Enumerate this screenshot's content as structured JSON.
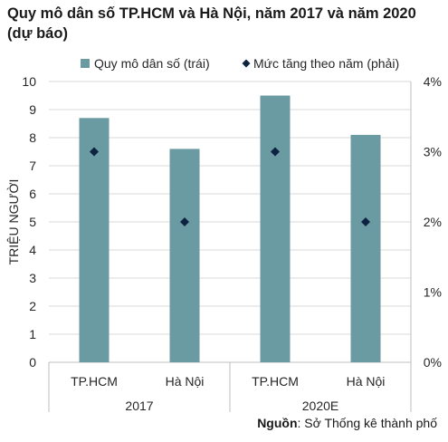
{
  "title": "Quy mô dân số TP.HCM và Hà Nội, năm 2017 và năm 2020 (dự báo)",
  "source": {
    "label": "Nguồn",
    "text": ": Sở Thống kê thành phố"
  },
  "colors": {
    "bar": "#6a9aa2",
    "marker": "#0d2340",
    "grid": "#d9d9d9",
    "axis": "#bfbfbf",
    "text": "#262626"
  },
  "chart_data": {
    "type": "bar",
    "categories": [
      "TP.HCM",
      "Hà Nội",
      "TP.HCM",
      "Hà Nội"
    ],
    "groups": [
      {
        "label": "2017",
        "span": [
          0,
          1
        ]
      },
      {
        "label": "2020E",
        "span": [
          2,
          3
        ]
      }
    ],
    "series": [
      {
        "name": "Quy mô dân số (trái)",
        "type": "bar",
        "axis": "left",
        "values": [
          8.7,
          7.6,
          9.5,
          8.1
        ]
      },
      {
        "name": "Mức tăng theo năm (phải)",
        "type": "scatter",
        "marker": "diamond",
        "axis": "right",
        "values": [
          3,
          2,
          3,
          2
        ]
      }
    ],
    "ylabel": "TRIỆU NGƯỜI",
    "ylim": [
      0,
      10
    ],
    "yticks": [
      "0",
      "1",
      "2",
      "3",
      "4",
      "5",
      "6",
      "7",
      "8",
      "9",
      "10"
    ],
    "y2lim": [
      0,
      4
    ],
    "y2ticks": [
      "0%",
      "1%",
      "2%",
      "3%",
      "4%"
    ],
    "grid": true,
    "legend": "top"
  }
}
